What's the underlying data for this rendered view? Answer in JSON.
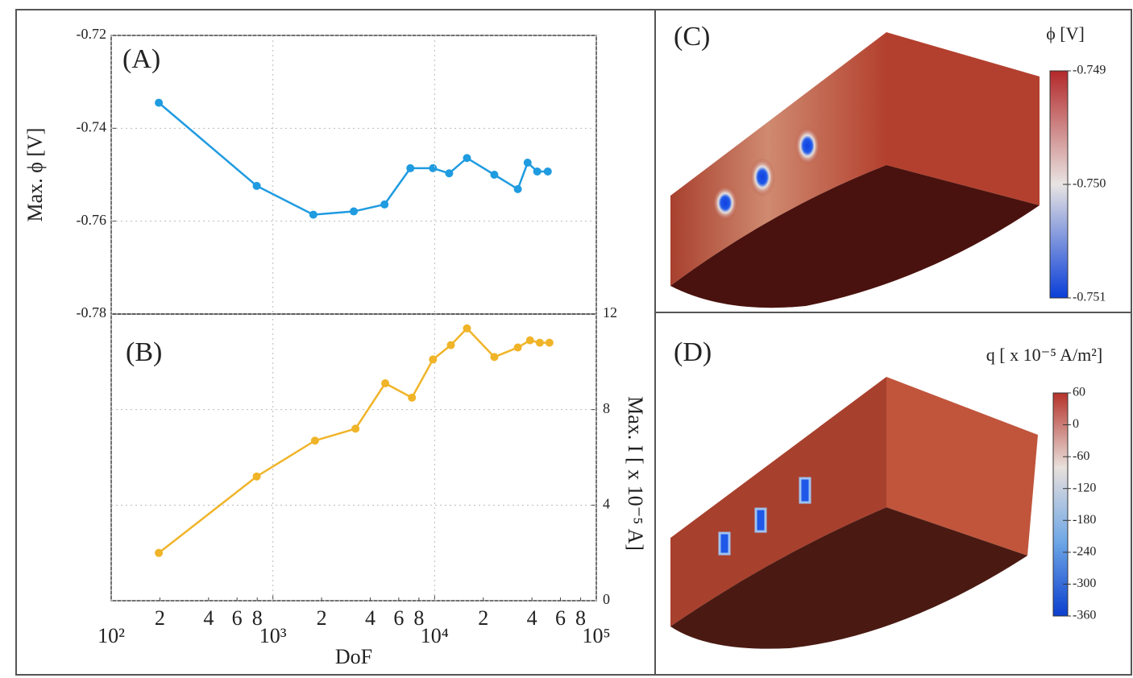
{
  "chart_data": [
    {
      "type": "line",
      "panel_label": "(A)",
      "ylabel": "Max. ϕ [V]",
      "xscale": "log",
      "xlim": [
        100,
        100000
      ],
      "ylim": [
        -0.78,
        -0.72
      ],
      "yticks": [
        -0.72,
        -0.74,
        -0.76,
        -0.78
      ],
      "grid": true,
      "x": [
        197,
        794,
        1778,
        3162,
        4900,
        7080,
        9770,
        12300,
        15850,
        23400,
        32700,
        37600,
        43100,
        50100
      ],
      "series": [
        {
          "color": "#1f9be0",
          "values": [
            -0.7345,
            -0.7524,
            -0.7586,
            -0.7579,
            -0.7564,
            -0.7486,
            -0.7486,
            -0.7497,
            -0.7464,
            -0.75,
            -0.7531,
            -0.7474,
            -0.7493,
            -0.7493
          ]
        }
      ]
    },
    {
      "type": "line",
      "panel_label": "(B)",
      "xlabel": "DoF",
      "y2label": "Max. I [ x 10⁻⁵ A]",
      "xscale": "log",
      "xlim": [
        100,
        100000
      ],
      "xticks": [
        {
          "value": 100,
          "label": "10²"
        },
        {
          "value": 200,
          "label": "2"
        },
        {
          "value": 400,
          "label": "4"
        },
        {
          "value": 600,
          "label": "6"
        },
        {
          "value": 800,
          "label": "8"
        },
        {
          "value": 1000,
          "label": "10³"
        },
        {
          "value": 2000,
          "label": "2"
        },
        {
          "value": 4000,
          "label": "4"
        },
        {
          "value": 6000,
          "label": "6"
        },
        {
          "value": 8000,
          "label": "8"
        },
        {
          "value": 10000,
          "label": "10⁴"
        },
        {
          "value": 20000,
          "label": "2"
        },
        {
          "value": 40000,
          "label": "4"
        },
        {
          "value": 60000,
          "label": "6"
        },
        {
          "value": 80000,
          "label": "8"
        },
        {
          "value": 100000,
          "label": "10⁵"
        }
      ],
      "y2lim": [
        0,
        12
      ],
      "y2ticks": [
        0,
        4,
        8,
        12
      ],
      "grid": true,
      "x": [
        197,
        794,
        1820,
        3240,
        4950,
        7240,
        9770,
        12600,
        15850,
        23400,
        32700,
        38900,
        44700,
        51300
      ],
      "series": [
        {
          "color": "#f0b428",
          "axis": "y2",
          "values": [
            2.0,
            5.2,
            6.7,
            7.2,
            9.1,
            8.5,
            10.1,
            10.7,
            11.4,
            10.2,
            10.6,
            10.9,
            10.8,
            10.8
          ]
        }
      ]
    },
    {
      "type": "colorbar",
      "panel_label": "(C)",
      "title": "ϕ [V]",
      "ylim": [
        -0.751,
        -0.749
      ],
      "yticks": [
        -0.749,
        {
          "value": -0.75,
          "label": "-0.750"
        },
        -0.751
      ],
      "colors": [
        "#0a3ed8",
        "#e8e4e2",
        "#b3282a"
      ]
    },
    {
      "type": "colorbar",
      "panel_label": "(D)",
      "title": "q [ x 10⁻⁵ A/m²]",
      "ylim": [
        -360,
        60
      ],
      "yticks": [
        60,
        0,
        -60,
        -120,
        -180,
        -240,
        -300,
        -360
      ],
      "colors": [
        "#0b3fcf",
        "#6fa7e6",
        "#e8e0dc",
        "#b5322a"
      ]
    }
  ]
}
